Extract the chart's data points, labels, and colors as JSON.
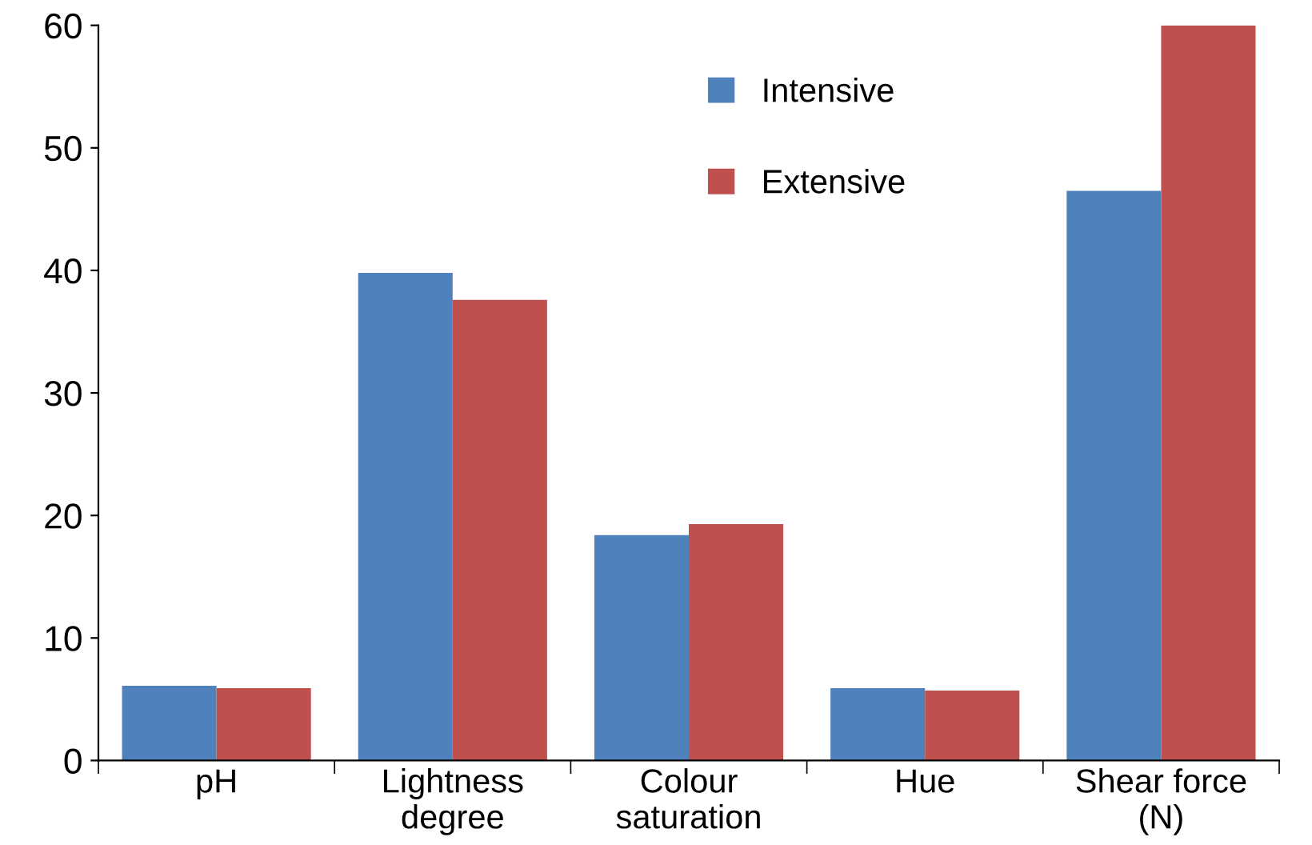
{
  "chart_data": {
    "type": "bar",
    "categories": [
      "pH",
      "Lightness\ndegree",
      "Colour\nsaturation",
      "Hue",
      "Shear force\n(N)"
    ],
    "series": [
      {
        "name": "Intensive",
        "color": "#4f81bd",
        "values": [
          6.1,
          39.8,
          18.4,
          5.9,
          46.5
        ]
      },
      {
        "name": "Extensive",
        "color": "#c0504d",
        "values": [
          5.9,
          37.6,
          19.3,
          5.7,
          60.0
        ]
      }
    ],
    "ylim": [
      0,
      60
    ],
    "yticks": [
      0,
      10,
      20,
      30,
      40,
      50,
      60
    ],
    "grid": false,
    "legend": "top"
  }
}
